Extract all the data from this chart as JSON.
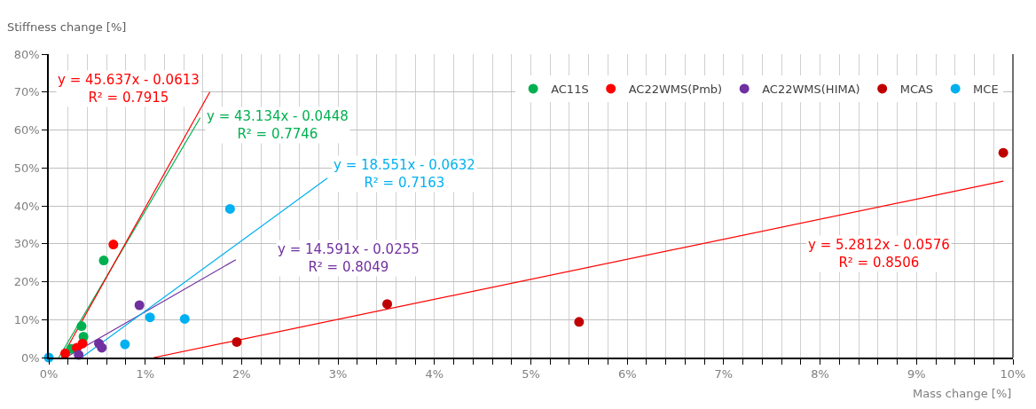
{
  "chart_data": {
    "type": "scatter",
    "xlabel": "Mass change [%]",
    "ylabel": "Stiffness change [%]",
    "xlim": [
      0,
      0.1
    ],
    "ylim": [
      0,
      0.8
    ],
    "xticks": [
      {
        "value": 0,
        "label": "0%"
      },
      {
        "value": 0.002,
        "label": null
      },
      {
        "value": 0.004,
        "label": null
      },
      {
        "value": 0.006,
        "label": null
      },
      {
        "value": 0.008,
        "label": null
      },
      {
        "value": 0.01,
        "label": "1%"
      },
      {
        "value": 0.012,
        "label": null
      },
      {
        "value": 0.014,
        "label": null
      },
      {
        "value": 0.016,
        "label": null
      },
      {
        "value": 0.018,
        "label": null
      },
      {
        "value": 0.02,
        "label": "2%"
      },
      {
        "value": 0.022,
        "label": null
      },
      {
        "value": 0.024,
        "label": null
      },
      {
        "value": 0.026,
        "label": null
      },
      {
        "value": 0.028,
        "label": null
      },
      {
        "value": 0.03,
        "label": "3%"
      },
      {
        "value": 0.032,
        "label": null
      },
      {
        "value": 0.034,
        "label": null
      },
      {
        "value": 0.036,
        "label": null
      },
      {
        "value": 0.038,
        "label": null
      },
      {
        "value": 0.04,
        "label": "4%"
      },
      {
        "value": 0.042,
        "label": null
      },
      {
        "value": 0.044,
        "label": null
      },
      {
        "value": 0.046,
        "label": null
      },
      {
        "value": 0.048,
        "label": null
      },
      {
        "value": 0.05,
        "label": "5%"
      },
      {
        "value": 0.052,
        "label": null
      },
      {
        "value": 0.054,
        "label": null
      },
      {
        "value": 0.056,
        "label": null
      },
      {
        "value": 0.058,
        "label": null
      },
      {
        "value": 0.06,
        "label": "6%"
      },
      {
        "value": 0.062,
        "label": null
      },
      {
        "value": 0.064,
        "label": null
      },
      {
        "value": 0.066,
        "label": null
      },
      {
        "value": 0.068,
        "label": null
      },
      {
        "value": 0.07,
        "label": "7%"
      },
      {
        "value": 0.072,
        "label": null
      },
      {
        "value": 0.074,
        "label": null
      },
      {
        "value": 0.076,
        "label": null
      },
      {
        "value": 0.078,
        "label": null
      },
      {
        "value": 0.08,
        "label": "8%"
      },
      {
        "value": 0.082,
        "label": null
      },
      {
        "value": 0.084,
        "label": null
      },
      {
        "value": 0.086,
        "label": null
      },
      {
        "value": 0.088,
        "label": null
      },
      {
        "value": 0.09,
        "label": "9%"
      },
      {
        "value": 0.092,
        "label": null
      },
      {
        "value": 0.094,
        "label": null
      },
      {
        "value": 0.096,
        "label": null
      },
      {
        "value": 0.098,
        "label": null
      },
      {
        "value": 0.1,
        "label": "10%"
      }
    ],
    "yticks": [
      {
        "value": 0,
        "label": "0%"
      },
      {
        "value": 0.1,
        "label": "10%"
      },
      {
        "value": 0.2,
        "label": "20%"
      },
      {
        "value": 0.3,
        "label": "30%"
      },
      {
        "value": 0.4,
        "label": "40%"
      },
      {
        "value": 0.5,
        "label": "50%"
      },
      {
        "value": 0.6,
        "label": "60%"
      },
      {
        "value": 0.7,
        "label": "70%"
      },
      {
        "value": 0.8,
        "label": "80%"
      }
    ],
    "grid": true,
    "legend": "top right",
    "marker": "circle",
    "series": [
      {
        "type": "line",
        "marker": "none",
        "color": "#00b050",
        "x": [
          0.00104,
          0.0157
        ],
        "values": [
          0,
          0.632
        ]
      },
      {
        "type": "line",
        "marker": "none",
        "color": "#ff0000",
        "x": [
          0.00134,
          0.0167
        ],
        "values": [
          0,
          0.7
        ]
      },
      {
        "type": "line",
        "marker": "none",
        "color": "#7030a0",
        "x": [
          0.00175,
          0.0194
        ],
        "values": [
          0,
          0.258
        ]
      },
      {
        "type": "line",
        "marker": "none",
        "color": "#ff0000",
        "x": [
          0.0109,
          0.099
        ],
        "values": [
          0,
          0.465
        ]
      },
      {
        "type": "line",
        "marker": "none",
        "color": "#00b0f0",
        "x": [
          0.0034,
          0.0289
        ],
        "values": [
          0,
          0.473
        ]
      },
      {
        "name": "AC11S",
        "color": "#00b050",
        "x": [
          0.0023,
          0.0034,
          0.0036,
          0.0057
        ],
        "values": [
          0.023,
          0.083,
          0.055,
          0.256
        ]
      },
      {
        "name": "AC22WMS(Pmb)",
        "color": "#ff0000",
        "x": [
          0.0017,
          0.0029,
          0.0035,
          0.0067
        ],
        "values": [
          0.011,
          0.026,
          0.037,
          0.298
        ]
      },
      {
        "name": "AC22WMS(HIMA)",
        "color": "#7030a0",
        "x": [
          0.0031,
          0.0052,
          0.0055,
          0.0094
        ],
        "values": [
          0.007,
          0.037,
          0.026,
          0.138
        ]
      },
      {
        "name": "MCAS",
        "color": "#c00000",
        "x": [
          0.0195,
          0.0351,
          0.055,
          0.099
        ],
        "values": [
          0.041,
          0.141,
          0.094,
          0.54
        ]
      },
      {
        "name": "MCE",
        "color": "#00b0f0",
        "x": [
          0,
          0.0079,
          0.0105,
          0.0141,
          0.0188
        ],
        "values": [
          0,
          0.035,
          0.106,
          0.102,
          0.392
        ]
      }
    ],
    "annotations": [
      "y = 43.134x - 0.0448\nR² = 0.7746",
      "y = 45.637x - 0.0613\nR² = 0.7915",
      "y = 14.591x - 0.0255\nR² = 0.8049",
      "y = 5.2812x - 0.0576\nR² = 0.8506",
      "y = 18.551x - 0.0632\nR² = 0.7163"
    ]
  }
}
